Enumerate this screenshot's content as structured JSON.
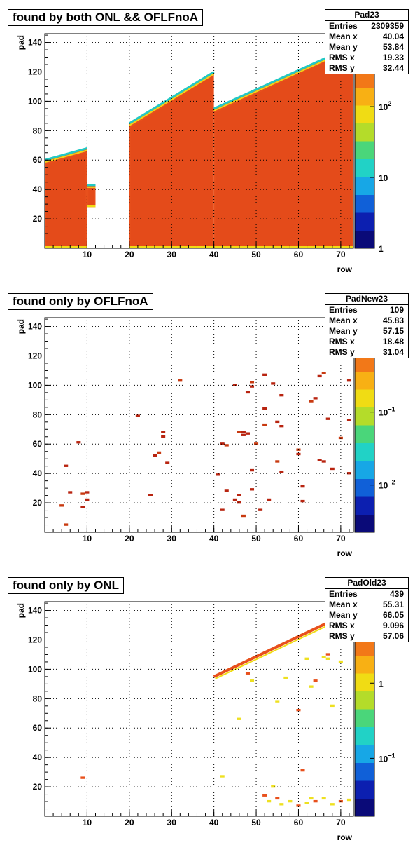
{
  "chart_data": [
    {
      "type": "heatmap",
      "title": "found by both ONL && OFLFnoA",
      "xlabel": "row",
      "ylabel": "pad",
      "xlim": [
        0,
        73
      ],
      "ylim": [
        0,
        146
      ],
      "x_ticks": [
        "10",
        "20",
        "30",
        "40",
        "50",
        "60",
        "70"
      ],
      "y_ticks": [
        "20",
        "40",
        "60",
        "80",
        "100",
        "120",
        "140"
      ],
      "z_scale": "log",
      "z_ticks": [
        {
          "base": "10",
          "exp": "2"
        },
        {
          "base": "10",
          "exp": ""
        },
        {
          "base": "1",
          "exp": ""
        }
      ],
      "stats": {
        "name": "Pad23",
        "rows": [
          [
            "Entries",
            "2309359"
          ],
          [
            "Mean x",
            "40.04"
          ],
          [
            "Mean y",
            "53.84"
          ],
          [
            "RMS x",
            "19.33"
          ],
          [
            "RMS y",
            "32.44"
          ]
        ]
      },
      "regions": [
        {
          "x": [
            0,
            10
          ],
          "y": [
            0,
            60
          ],
          "top_at_start": 60,
          "top_at_end": 68
        },
        {
          "x": [
            10,
            12
          ],
          "y": [
            28,
            43
          ]
        },
        {
          "x": [
            20,
            40
          ],
          "y": [
            0,
            140
          ],
          "top_at_start": 85,
          "top_at_end": 120
        },
        {
          "x": [
            40,
            73
          ],
          "y": [
            0,
            140
          ],
          "top_at_start": 95,
          "top_at_end": 138
        }
      ]
    },
    {
      "type": "heatmap",
      "title": "found only by OFLFnoA",
      "xlabel": "row",
      "ylabel": "pad",
      "xlim": [
        0,
        73
      ],
      "ylim": [
        0,
        146
      ],
      "x_ticks": [
        "10",
        "20",
        "30",
        "40",
        "50",
        "60",
        "70"
      ],
      "y_ticks": [
        "20",
        "40",
        "60",
        "80",
        "100",
        "120",
        "140"
      ],
      "z_scale": "log",
      "z_ticks": [
        {
          "base": "10",
          "exp": "−1"
        },
        {
          "base": "10",
          "exp": "−2"
        }
      ],
      "stats": {
        "name": "PadNew23",
        "rows": [
          [
            "Entries",
            "109"
          ],
          [
            "Mean x",
            "45.83"
          ],
          [
            "Mean y",
            "57.15"
          ],
          [
            "RMS x",
            "18.48"
          ],
          [
            "RMS y",
            "31.04"
          ]
        ]
      },
      "points": [
        [
          5,
          5
        ],
        [
          5,
          45
        ],
        [
          6,
          27
        ],
        [
          8,
          61
        ],
        [
          9,
          26
        ],
        [
          9,
          17
        ],
        [
          10,
          27
        ],
        [
          10,
          22
        ],
        [
          4,
          18
        ],
        [
          22,
          79
        ],
        [
          25,
          25
        ],
        [
          26,
          52
        ],
        [
          27,
          54
        ],
        [
          28,
          68
        ],
        [
          28,
          65
        ],
        [
          29,
          47
        ],
        [
          32,
          103
        ],
        [
          41,
          39
        ],
        [
          42,
          60
        ],
        [
          42,
          15
        ],
        [
          43,
          59
        ],
        [
          43,
          28
        ],
        [
          45,
          100
        ],
        [
          45,
          22
        ],
        [
          46,
          68
        ],
        [
          46,
          25
        ],
        [
          46,
          20
        ],
        [
          47,
          66
        ],
        [
          47,
          11
        ],
        [
          47,
          68
        ],
        [
          48,
          95
        ],
        [
          48,
          67
        ],
        [
          49,
          102
        ],
        [
          49,
          99
        ],
        [
          49,
          42
        ],
        [
          49,
          29
        ],
        [
          50,
          60
        ],
        [
          51,
          15
        ],
        [
          52,
          107
        ],
        [
          52,
          84
        ],
        [
          52,
          73
        ],
        [
          53,
          22
        ],
        [
          54,
          101
        ],
        [
          55,
          75
        ],
        [
          55,
          48
        ],
        [
          56,
          93
        ],
        [
          56,
          41
        ],
        [
          56,
          72
        ],
        [
          60,
          56
        ],
        [
          60,
          53
        ],
        [
          61,
          31
        ],
        [
          61,
          21
        ],
        [
          63,
          89
        ],
        [
          64,
          91
        ],
        [
          65,
          106
        ],
        [
          65,
          49
        ],
        [
          66,
          108
        ],
        [
          66,
          48
        ],
        [
          67,
          77
        ],
        [
          68,
          43
        ],
        [
          70,
          64
        ],
        [
          72,
          76
        ],
        [
          72,
          103
        ],
        [
          72,
          40
        ]
      ]
    },
    {
      "type": "heatmap",
      "title": "found only by ONL",
      "xlabel": "row",
      "ylabel": "pad",
      "xlim": [
        0,
        73
      ],
      "ylim": [
        0,
        146
      ],
      "x_ticks": [
        "10",
        "20",
        "30",
        "40",
        "50",
        "60",
        "70"
      ],
      "y_ticks": [
        "20",
        "40",
        "60",
        "80",
        "100",
        "120",
        "140"
      ],
      "z_scale": "log",
      "z_ticks": [
        {
          "base": "1",
          "exp": ""
        },
        {
          "base": "10",
          "exp": "−1"
        }
      ],
      "stats": {
        "name": "PadOld23",
        "rows": [
          [
            "Entries",
            "439"
          ],
          [
            "Mean x",
            "55.31"
          ],
          [
            "Mean y",
            "66.05"
          ],
          [
            "RMS x",
            "9.096"
          ],
          [
            "RMS y",
            "57.06"
          ]
        ]
      },
      "edge_line": {
        "x": [
          40,
          73
        ],
        "y": [
          95,
          140
        ]
      },
      "points": [
        [
          9,
          26
        ],
        [
          42,
          27
        ],
        [
          46,
          66
        ],
        [
          48,
          97
        ],
        [
          49,
          92
        ],
        [
          55,
          78
        ],
        [
          61,
          31
        ],
        [
          62,
          107
        ],
        [
          63,
          88
        ],
        [
          64,
          92
        ],
        [
          66,
          108
        ],
        [
          67,
          107
        ],
        [
          67,
          110
        ],
        [
          68,
          75
        ],
        [
          70,
          105
        ],
        [
          52,
          14
        ],
        [
          53,
          10
        ],
        [
          54,
          20
        ],
        [
          55,
          12
        ],
        [
          56,
          8
        ],
        [
          58,
          10
        ],
        [
          60,
          7
        ],
        [
          62,
          9
        ],
        [
          63,
          12
        ],
        [
          64,
          10
        ],
        [
          66,
          12
        ],
        [
          68,
          8
        ],
        [
          70,
          10
        ],
        [
          72,
          11
        ],
        [
          57,
          94
        ],
        [
          60,
          72
        ]
      ]
    }
  ]
}
